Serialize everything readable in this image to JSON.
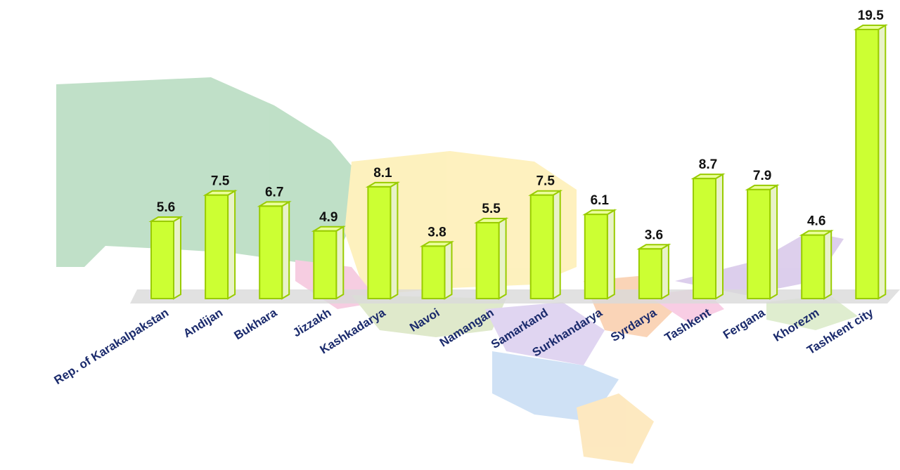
{
  "chart_data": {
    "type": "bar",
    "categories": [
      "Rep. of Karakalpakstan",
      "Andijan",
      "Bukhara",
      "Jizzakh",
      "Kashkadarya",
      "Navoi",
      "Namangan",
      "Samarkand",
      "Surkhandarya",
      "Syrdarya",
      "Tashkent",
      "Fergana",
      "Khorezm",
      "Tashkent city"
    ],
    "values": [
      5.6,
      7.5,
      6.7,
      4.9,
      8.1,
      3.8,
      5.5,
      7.5,
      6.1,
      3.6,
      8.7,
      7.9,
      4.6,
      19.5
    ],
    "color": "#ccff33"
  }
}
